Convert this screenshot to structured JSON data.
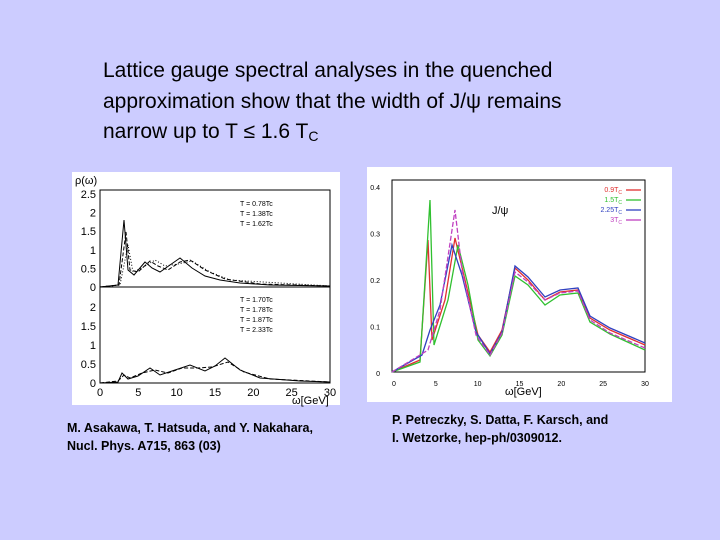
{
  "heading": {
    "lines": [
      "Lattice gauge spectral analyses in the quenched",
      "approximation show that the width of J/ψ remains",
      "narrow up to T ≤ 1.6 T"
    ],
    "subscript": "C"
  },
  "left_figure": {
    "y_label": "ρ(ω)",
    "x_label": "ω[GeV]",
    "top_yticks": [
      "2.5",
      "2",
      "1.5",
      "1",
      "0.5",
      "0"
    ],
    "bottom_yticks": [
      "2",
      "1.5",
      "1",
      "0.5",
      "0"
    ],
    "xticks": [
      "0",
      "5",
      "10",
      "15",
      "20",
      "25",
      "30"
    ],
    "top_legend": [
      "T = 0.78Tc",
      "T = 1.38Tc",
      "T = 1.62Tc"
    ],
    "bottom_legend": [
      "T = 1.70Tc",
      "T = 1.78Tc",
      "T = 1.87Tc",
      "T = 2.33Tc"
    ],
    "caption": [
      "M. Asakawa, T. Hatsuda, and Y. Nakahara,",
      "Nucl. Phys. A715, 863 (03)"
    ]
  },
  "right_figure": {
    "x_label": "ω[GeV]",
    "annotation": "J/ψ",
    "yticks": [
      "0.4",
      "0.3",
      "0.2",
      "0.1",
      "0"
    ],
    "xticks": [
      "0",
      "5",
      "10",
      "15",
      "20",
      "25",
      "30"
    ],
    "legend": [
      {
        "name": "0.9T",
        "sub": "C",
        "color": "#e03030"
      },
      {
        "name": "1.5T",
        "sub": "C",
        "color": "#30c030"
      },
      {
        "name": "2.25T",
        "sub": "C",
        "color": "#3040c0"
      },
      {
        "name": "3T",
        "sub": "C",
        "color": "#c040c0"
      }
    ],
    "caption": [
      "P. Petreczky, S. Datta, F. Karsch, and",
      "I. Wetzorke,  hep-ph/0309012."
    ]
  }
}
